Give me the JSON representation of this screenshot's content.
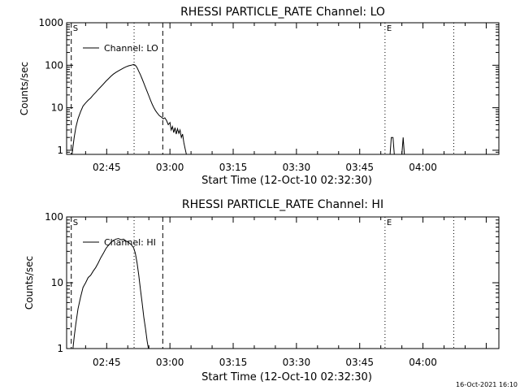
{
  "footer": {
    "timestamp": "16-Oct-2021 16:10"
  },
  "chart_data": [
    {
      "type": "line",
      "title": "RHESSI PARTICLE_RATE Channel: LO",
      "xlabel": "Start Time (12-Oct-10 02:32:30)",
      "ylabel": "Counts/sec",
      "x_ticks": [
        "02:45",
        "03:00",
        "03:15",
        "03:30",
        "03:45",
        "04:00"
      ],
      "x_tick_minutes": [
        45,
        60,
        75,
        90,
        105,
        120
      ],
      "xlim_minutes_after_0200": [
        35.5,
        138
      ],
      "y_scale": "log",
      "y_ticks": [
        "1",
        "10",
        "100",
        "1000"
      ],
      "ylim": [
        0.8,
        1000
      ],
      "legend": {
        "label": "Channel: LO",
        "placement": "top-left"
      },
      "markers": [
        {
          "label": "S",
          "minute": 36.6,
          "style": "dashed"
        },
        {
          "label": "",
          "minute": 51.5,
          "style": "dotted"
        },
        {
          "label": "",
          "minute": 58.3,
          "style": "dashed"
        },
        {
          "label": "E",
          "minute": 111.0,
          "style": "dotted"
        },
        {
          "label": "",
          "minute": 127.3,
          "style": "dotted"
        }
      ],
      "series": [
        {
          "name": "Channel: LO",
          "points": [
            [
              36.8,
              0.8
            ],
            [
              37.0,
              1.2
            ],
            [
              37.3,
              2.0
            ],
            [
              37.7,
              3.5
            ],
            [
              38.2,
              5.5
            ],
            [
              38.8,
              8.0
            ],
            [
              39.4,
              11
            ],
            [
              40.0,
              13
            ],
            [
              40.6,
              15
            ],
            [
              41.2,
              17
            ],
            [
              41.8,
              20
            ],
            [
              42.4,
              23
            ],
            [
              43.0,
              27
            ],
            [
              43.6,
              31
            ],
            [
              44.2,
              36
            ],
            [
              44.8,
              42
            ],
            [
              45.4,
              48
            ],
            [
              46.0,
              55
            ],
            [
              46.6,
              62
            ],
            [
              47.2,
              68
            ],
            [
              47.8,
              74
            ],
            [
              48.4,
              80
            ],
            [
              49.0,
              86
            ],
            [
              49.6,
              92
            ],
            [
              50.2,
              97
            ],
            [
              50.8,
              100
            ],
            [
              51.4,
              104
            ],
            [
              51.8,
              100
            ],
            [
              52.2,
              88
            ],
            [
              52.6,
              72
            ],
            [
              53.0,
              60
            ],
            [
              53.4,
              48
            ],
            [
              53.8,
              38
            ],
            [
              54.2,
              30
            ],
            [
              54.6,
              24
            ],
            [
              55.0,
              19
            ],
            [
              55.4,
              15
            ],
            [
              55.8,
              12
            ],
            [
              56.2,
              10
            ],
            [
              56.6,
              8.5
            ],
            [
              57.0,
              7.5
            ],
            [
              57.5,
              6.5
            ],
            [
              58.0,
              6.0
            ],
            [
              58.4,
              5.5
            ],
            [
              58.8,
              5.8
            ],
            [
              59.2,
              5.0
            ],
            [
              59.6,
              4.0
            ],
            [
              60.0,
              4.5
            ],
            [
              60.3,
              3.0
            ],
            [
              60.6,
              3.6
            ],
            [
              60.9,
              2.6
            ],
            [
              61.2,
              3.4
            ],
            [
              61.5,
              2.4
            ],
            [
              61.8,
              3.2
            ],
            [
              62.1,
              2.5
            ],
            [
              62.4,
              3.0
            ],
            [
              62.7,
              2.0
            ],
            [
              63.0,
              2.4
            ],
            [
              63.3,
              1.5
            ],
            [
              63.6,
              1.1
            ],
            [
              63.9,
              0.8
            ]
          ],
          "extra_segments": [
            [
              [
                112.2,
                0.8
              ],
              [
                112.5,
                2.0
              ],
              [
                112.9,
                2.0
              ],
              [
                113.2,
                0.8
              ]
            ],
            [
              [
                115.0,
                0.8
              ],
              [
                115.3,
                2.0
              ],
              [
                115.6,
                0.8
              ]
            ]
          ]
        }
      ]
    },
    {
      "type": "line",
      "title": "RHESSI PARTICLE_RATE Channel: HI",
      "xlabel": "Start Time (12-Oct-10 02:32:30)",
      "ylabel": "Counts/sec",
      "x_ticks": [
        "02:45",
        "03:00",
        "03:15",
        "03:30",
        "03:45",
        "04:00"
      ],
      "x_tick_minutes": [
        45,
        60,
        75,
        90,
        105,
        120
      ],
      "xlim_minutes_after_0200": [
        35.5,
        138
      ],
      "y_scale": "log",
      "y_ticks": [
        "1",
        "10",
        "100"
      ],
      "ylim": [
        1,
        100
      ],
      "legend": {
        "label": "Channel: HI",
        "placement": "top-left"
      },
      "markers": [
        {
          "label": "S",
          "minute": 36.6,
          "style": "dashed"
        },
        {
          "label": "",
          "minute": 51.5,
          "style": "dotted"
        },
        {
          "label": "",
          "minute": 58.3,
          "style": "dashed"
        },
        {
          "label": "E",
          "minute": 111.0,
          "style": "dotted"
        },
        {
          "label": "",
          "minute": 127.3,
          "style": "dotted"
        }
      ],
      "series": [
        {
          "name": "Channel: HI",
          "points": [
            [
              37.0,
              1.0
            ],
            [
              37.3,
              1.5
            ],
            [
              37.7,
              2.4
            ],
            [
              38.2,
              4.0
            ],
            [
              38.8,
              6.0
            ],
            [
              39.4,
              8.5
            ],
            [
              40.0,
              10
            ],
            [
              40.6,
              12
            ],
            [
              41.2,
              13
            ],
            [
              41.8,
              15
            ],
            [
              42.4,
              17
            ],
            [
              43.0,
              20
            ],
            [
              43.6,
              24
            ],
            [
              44.2,
              28
            ],
            [
              44.8,
              33
            ],
            [
              45.4,
              37
            ],
            [
              46.0,
              41
            ],
            [
              46.6,
              44
            ],
            [
              47.2,
              46
            ],
            [
              47.8,
              47
            ],
            [
              48.4,
              45
            ],
            [
              49.0,
              46
            ],
            [
              49.6,
              43
            ],
            [
              50.2,
              41
            ],
            [
              50.8,
              38
            ],
            [
              51.4,
              34
            ],
            [
              51.8,
              28
            ],
            [
              52.2,
              20
            ],
            [
              52.6,
              13
            ],
            [
              53.0,
              8
            ],
            [
              53.4,
              5
            ],
            [
              53.8,
              3
            ],
            [
              54.2,
              2
            ],
            [
              54.6,
              1.3
            ],
            [
              54.9,
              1.0
            ]
          ],
          "extra_segments": []
        }
      ]
    }
  ]
}
